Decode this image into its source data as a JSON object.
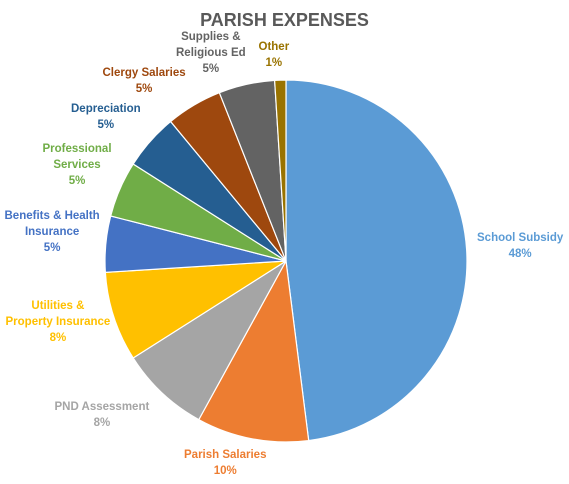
{
  "chart_data": {
    "type": "pie",
    "title": "PARISH EXPENSES",
    "slices": [
      {
        "name": "School Subsidy",
        "label_lines": [
          "School Subsidy"
        ],
        "value": 48,
        "pct_label": "48%",
        "color": "#5B9BD5"
      },
      {
        "name": "Parish Salaries",
        "label_lines": [
          "Parish Salaries"
        ],
        "value": 10,
        "pct_label": "10%",
        "color": "#ED7D31"
      },
      {
        "name": "PND Assessment",
        "label_lines": [
          "PND Assessment"
        ],
        "value": 8,
        "pct_label": "8%",
        "color": "#A5A5A5"
      },
      {
        "name": "Utilities & Property Insurance",
        "label_lines": [
          "Utilities &",
          "Property Insurance"
        ],
        "value": 8,
        "pct_label": "8%",
        "color": "#FFC000"
      },
      {
        "name": "Benefits & Health Insurance",
        "label_lines": [
          "Benefits & Health",
          "Insurance"
        ],
        "value": 5,
        "pct_label": "5%",
        "color": "#4472C4"
      },
      {
        "name": "Professional Services",
        "label_lines": [
          "Professional",
          "Services"
        ],
        "value": 5,
        "pct_label": "5%",
        "color": "#70AD47"
      },
      {
        "name": "Depreciation",
        "label_lines": [
          "Depreciation"
        ],
        "value": 5,
        "pct_label": "5%",
        "color": "#255E91"
      },
      {
        "name": "Clergy Salaries",
        "label_lines": [
          "Clergy Salaries"
        ],
        "value": 5,
        "pct_label": "5%",
        "color": "#9E480E"
      },
      {
        "name": "Supplies & Religious Ed",
        "label_lines": [
          "Supplies &",
          "Religious Ed"
        ],
        "value": 5,
        "pct_label": "5%",
        "color": "#636363"
      },
      {
        "name": "Other",
        "label_lines": [
          "Other"
        ],
        "value": 1,
        "pct_label": "1%",
        "color": "#997300"
      }
    ],
    "legend": "none",
    "labels": "outside"
  }
}
